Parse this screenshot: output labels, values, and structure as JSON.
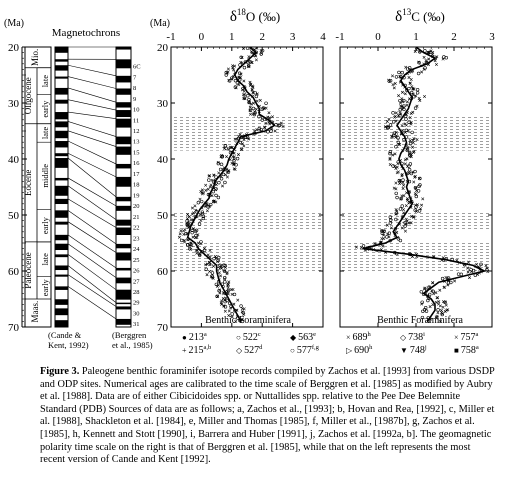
{
  "chart_data": [
    {
      "type": "table",
      "title": "Magnetochrons",
      "ylabel": "(Ma)",
      "ylim": [
        20,
        70
      ],
      "ticks": [
        "20",
        "30",
        "40",
        "50",
        "60",
        "70"
      ],
      "epochs": [
        {
          "name": "Mio.",
          "from": 20,
          "to": 23.7
        },
        {
          "name": "Oligocene",
          "from": 23.7,
          "to": 33.7
        },
        {
          "name": "Eocene",
          "from": 33.7,
          "to": 54.8
        },
        {
          "name": "Paleocene",
          "from": 54.8,
          "to": 65
        },
        {
          "name": "Maas.",
          "from": 65,
          "to": 69.5
        }
      ],
      "subepochs": [
        {
          "name": "late",
          "from": 23.7,
          "to": 28.5
        },
        {
          "name": "early",
          "from": 28.5,
          "to": 33.7
        },
        {
          "name": "late",
          "from": 33.7,
          "to": 37
        },
        {
          "name": "middle",
          "from": 37,
          "to": 49
        },
        {
          "name": "early",
          "from": 49,
          "to": 54.8
        },
        {
          "name": "late",
          "from": 54.8,
          "to": 61
        },
        {
          "name": "early",
          "from": 61,
          "to": 65
        }
      ],
      "chron_labels": [
        "6C",
        "7",
        "8",
        "9",
        "10",
        "11",
        "12",
        "13",
        "15",
        "16",
        "17",
        "18",
        "19",
        "20",
        "21",
        "22",
        "23",
        "24",
        "25",
        "26",
        "27",
        "28",
        "29",
        "30",
        "31"
      ],
      "left_scale_source": "(Cande & Kent, 1992)",
      "right_scale_source": "(Berggren et al., 1985)"
    },
    {
      "type": "scatter",
      "title": "δ18O (‰)",
      "title_main": "δ",
      "title_sup": "18",
      "title_rest": "O (‰)",
      "xlim": [
        -1,
        4
      ],
      "x_ticks": [
        "-1",
        "0",
        "1",
        "2",
        "3",
        "4"
      ],
      "ylim": [
        20,
        70
      ],
      "y_ticks": [
        "20",
        "30",
        "40",
        "50",
        "60",
        "70"
      ],
      "annotation": "Benthic Foraminifera",
      "trend": [
        [
          1.6,
          20
        ],
        [
          1.8,
          21
        ],
        [
          1.6,
          22
        ],
        [
          1.4,
          23
        ],
        [
          1.2,
          24
        ],
        [
          1.1,
          25
        ],
        [
          1.2,
          26
        ],
        [
          1.4,
          27
        ],
        [
          1.5,
          28
        ],
        [
          1.7,
          29
        ],
        [
          1.8,
          30
        ],
        [
          1.9,
          31
        ],
        [
          1.9,
          32
        ],
        [
          2.2,
          33
        ],
        [
          2.4,
          34
        ],
        [
          2.1,
          35
        ],
        [
          1.3,
          36
        ],
        [
          1.2,
          37
        ],
        [
          1.1,
          38
        ],
        [
          1.0,
          39
        ],
        [
          0.9,
          40
        ],
        [
          0.85,
          41
        ],
        [
          0.75,
          42
        ],
        [
          0.6,
          43
        ],
        [
          0.45,
          44
        ],
        [
          0.4,
          45
        ],
        [
          0.3,
          46
        ],
        [
          0.25,
          47
        ],
        [
          0.1,
          48
        ],
        [
          -0.05,
          49
        ],
        [
          -0.15,
          50
        ],
        [
          -0.25,
          51
        ],
        [
          -0.35,
          52
        ],
        [
          -0.4,
          53
        ],
        [
          -0.45,
          54
        ],
        [
          -0.2,
          55
        ],
        [
          -0.1,
          56
        ],
        [
          0.1,
          57
        ],
        [
          0.3,
          58
        ],
        [
          0.5,
          59
        ],
        [
          0.5,
          60
        ],
        [
          0.55,
          61
        ],
        [
          0.6,
          62
        ],
        [
          0.7,
          63
        ],
        [
          0.8,
          64
        ],
        [
          0.9,
          65
        ],
        [
          1.0,
          66
        ],
        [
          1.1,
          67
        ],
        [
          1.2,
          68
        ],
        [
          1.3,
          69
        ]
      ],
      "hatched_bands": [
        [
          32.5,
          38.5
        ],
        [
          49.5,
          52.5
        ],
        [
          55,
          60
        ]
      ],
      "legend": [
        {
          "marker": "●",
          "label": "213",
          "sup": "a"
        },
        {
          "marker": "○",
          "label": "522",
          "sup": "c"
        },
        {
          "marker": "◆",
          "label": "563",
          "sup": "e"
        },
        {
          "marker": "+",
          "label": "215",
          "sup": "a,b"
        },
        {
          "marker": "◇",
          "label": "527",
          "sup": "d"
        },
        {
          "marker": "○",
          "label": "577",
          "sup": "f,g"
        }
      ]
    },
    {
      "type": "scatter",
      "title": "δ13C (‰)",
      "title_main": "δ",
      "title_sup": "13",
      "title_rest": "C (‰)",
      "xlim": [
        -1,
        3
      ],
      "x_ticks": [
        "-1",
        "0",
        "1",
        "2",
        "3"
      ],
      "ylim": [
        20,
        70
      ],
      "annotation": "Benthic Foraminifera",
      "trend": [
        [
          1.0,
          20
        ],
        [
          1.2,
          21
        ],
        [
          1.5,
          22
        ],
        [
          1.3,
          23
        ],
        [
          0.9,
          24
        ],
        [
          0.7,
          25
        ],
        [
          0.6,
          26
        ],
        [
          0.7,
          27
        ],
        [
          0.8,
          28
        ],
        [
          0.9,
          29
        ],
        [
          0.85,
          30
        ],
        [
          0.8,
          31
        ],
        [
          0.7,
          32
        ],
        [
          0.6,
          33
        ],
        [
          0.5,
          34
        ],
        [
          0.6,
          35
        ],
        [
          0.7,
          36
        ],
        [
          0.75,
          37
        ],
        [
          0.7,
          38
        ],
        [
          0.6,
          39
        ],
        [
          0.55,
          40
        ],
        [
          0.6,
          41
        ],
        [
          0.7,
          42
        ],
        [
          0.75,
          43
        ],
        [
          0.8,
          44
        ],
        [
          0.75,
          45
        ],
        [
          0.8,
          46
        ],
        [
          0.85,
          47
        ],
        [
          0.9,
          48
        ],
        [
          0.8,
          49
        ],
        [
          0.7,
          50
        ],
        [
          0.6,
          51
        ],
        [
          0.5,
          52
        ],
        [
          0.4,
          53
        ],
        [
          0.5,
          54
        ],
        [
          0.2,
          55
        ],
        [
          -0.4,
          56
        ],
        [
          0.8,
          57
        ],
        [
          1.8,
          58
        ],
        [
          2.5,
          59
        ],
        [
          2.8,
          60
        ],
        [
          2.2,
          61
        ],
        [
          1.6,
          62
        ],
        [
          1.4,
          63
        ],
        [
          1.2,
          64
        ],
        [
          1.4,
          65
        ],
        [
          1.5,
          66
        ],
        [
          1.5,
          67
        ],
        [
          1.4,
          68
        ],
        [
          1.3,
          69
        ]
      ],
      "hatched_bands": [
        [
          32.5,
          38.5
        ],
        [
          49.5,
          52.5
        ],
        [
          55,
          60
        ]
      ],
      "legend": [
        {
          "marker": "×",
          "label": "689",
          "sup": "h"
        },
        {
          "marker": "◇",
          "label": "738",
          "sup": "i"
        },
        {
          "marker": "×",
          "label": "757",
          "sup": "a"
        },
        {
          "marker": "▷",
          "label": "690",
          "sup": "h"
        },
        {
          "marker": "▼",
          "label": "748",
          "sup": "j"
        },
        {
          "marker": "■",
          "label": "758",
          "sup": "a"
        }
      ]
    }
  ],
  "caption": {
    "label": "Figure 3.",
    "text": "Paleogene benthic foraminifer isotope records compiled by Zachos et al. [1993] from various DSDP and ODP sites. Numerical ages are calibrated to the time scale of Berggren et al. [1985] as modified by Aubry et al. [1988]. Data are of either Cibicidoides spp. or Nuttallides spp. relative to the Pee Dee Belemnite Standard (PDB) Sources of data are as follows; a, Zachos et al., [1993]; b, Hovan and Rea, [1992], c, Miller et al. [1988], Shackleton et al. [1984], e, Miller and Thomas [1985], f, Miller et al., [1987b], g, Zachos et al. [1985], h, Kennett and Stott [1990], i, Barrera and Huber [1991], j, Zachos et al. [1992a, b]. The geomagnetic polarity time scale on the right is that of Berggren et al. [1985], while that on the left represents the most recent version of Cande and Kent [1992]."
  }
}
